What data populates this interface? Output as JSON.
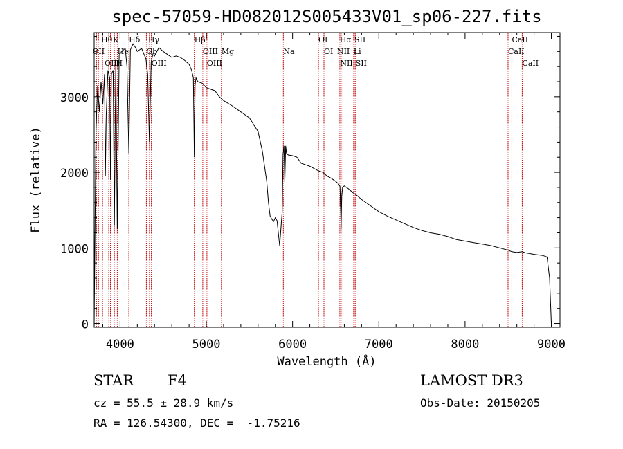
{
  "chart_data": {
    "type": "line",
    "title": "spec-57059-HD082012S005433V01_sp06-227.fits",
    "xlabel": "Wavelength (Å)",
    "ylabel": "Flux (relative)",
    "xlim": [
      3700,
      9100
    ],
    "ylim": [
      -50,
      3850
    ],
    "xticks": [
      4000,
      5000,
      6000,
      7000,
      8000,
      9000
    ],
    "yticks": [
      0,
      1000,
      2000,
      3000
    ],
    "series": [
      {
        "name": "spectrum",
        "x": [
          3700,
          3720,
          3740,
          3760,
          3780,
          3800,
          3820,
          3830,
          3840,
          3860,
          3880,
          3890,
          3900,
          3920,
          3934,
          3950,
          3968,
          3990,
          4020,
          4060,
          4080,
          4102,
          4120,
          4150,
          4180,
          4200,
          4250,
          4300,
          4320,
          4340,
          4360,
          4380,
          4400,
          4450,
          4500,
          4550,
          4600,
          4650,
          4700,
          4750,
          4800,
          4830,
          4850,
          4861,
          4870,
          4880,
          4900,
          4950,
          5000,
          5050,
          5100,
          5150,
          5200,
          5300,
          5400,
          5500,
          5600,
          5650,
          5700,
          5720,
          5740,
          5760,
          5780,
          5800,
          5820,
          5850,
          5870,
          5880,
          5890,
          5900,
          5910,
          5920,
          5930,
          5950,
          6000,
          6050,
          6100,
          6200,
          6300,
          6350,
          6400,
          6450,
          6500,
          6530,
          6550,
          6563,
          6570,
          6580,
          6600,
          6650,
          6700,
          6750,
          6800,
          6900,
          7000,
          7100,
          7200,
          7300,
          7400,
          7500,
          7600,
          7700,
          7800,
          7900,
          8000,
          8100,
          8200,
          8300,
          8400,
          8498,
          8542,
          8600,
          8662,
          8700,
          8800,
          8900,
          8950,
          8980,
          9000
        ],
        "values": [
          0,
          2500,
          3150,
          2800,
          3200,
          2900,
          3300,
          1950,
          2750,
          3350,
          3250,
          1900,
          3300,
          3350,
          1300,
          3500,
          1250,
          3550,
          3600,
          3640,
          3400,
          2250,
          3620,
          3700,
          3650,
          3600,
          3640,
          3500,
          3300,
          2400,
          3450,
          3560,
          3540,
          3650,
          3600,
          3560,
          3520,
          3540,
          3520,
          3480,
          3430,
          3350,
          3250,
          2200,
          3150,
          3250,
          3200,
          3180,
          3120,
          3100,
          3080,
          3000,
          2950,
          2880,
          2800,
          2720,
          2540,
          2280,
          1880,
          1600,
          1420,
          1380,
          1350,
          1400,
          1360,
          1030,
          1330,
          1480,
          2240,
          2350,
          1870,
          2350,
          2250,
          2230,
          2220,
          2200,
          2120,
          2080,
          2020,
          2000,
          1950,
          1920,
          1880,
          1850,
          1810,
          1250,
          1680,
          1800,
          1820,
          1780,
          1730,
          1690,
          1640,
          1560,
          1480,
          1420,
          1370,
          1320,
          1270,
          1230,
          1200,
          1180,
          1150,
          1110,
          1090,
          1070,
          1050,
          1030,
          1000,
          970,
          950,
          940,
          950,
          935,
          915,
          900,
          880,
          600,
          0
        ]
      }
    ],
    "line_labels": [
      {
        "name": "Hθ",
        "wavelength": 3797
      },
      {
        "name": "OII",
        "wavelength": 3727
      },
      {
        "name": "OIII",
        "wavelength": 3869
      },
      {
        "name": "K",
        "wavelength": 3934
      },
      {
        "name": "He",
        "wavelength": 3970
      },
      {
        "name": "H",
        "wavelength": 3968
      },
      {
        "name": "Hδ",
        "wavelength": 4102
      },
      {
        "name": "Gb",
        "wavelength": 4305
      },
      {
        "name": "OIII",
        "wavelength": 4363
      },
      {
        "name": "Hγ",
        "wavelength": 4341
      },
      {
        "name": "OIII",
        "wavelength": 4959
      },
      {
        "name": "OIII",
        "wavelength": 5007
      },
      {
        "name": "Hβ",
        "wavelength": 4861
      },
      {
        "name": "Mg",
        "wavelength": 5175
      },
      {
        "name": "Na",
        "wavelength": 5893
      },
      {
        "name": "OI",
        "wavelength": 6300
      },
      {
        "name": "OI",
        "wavelength": 6364
      },
      {
        "name": "Hα",
        "wavelength": 6563
      },
      {
        "name": "SII",
        "wavelength": 6717
      },
      {
        "name": "NII",
        "wavelength": 6548
      },
      {
        "name": "Li",
        "wavelength": 6708
      },
      {
        "name": "NII",
        "wavelength": 6584
      },
      {
        "name": "SII",
        "wavelength": 6731
      },
      {
        "name": "CaII",
        "wavelength": 8542
      },
      {
        "name": "CaII",
        "wavelength": 8498
      },
      {
        "name": "CaII",
        "wavelength": 8662
      }
    ],
    "marker_lines": [
      3727,
      3750,
      3797,
      3869,
      3889,
      3934,
      3968,
      4102,
      4305,
      4341,
      4363,
      4861,
      4959,
      5007,
      5175,
      5893,
      6300,
      6364,
      6548,
      6563,
      6584,
      6708,
      6717,
      6731,
      8498,
      8542,
      8662
    ]
  },
  "info": {
    "class_label": "STAR",
    "subclass": "F4",
    "survey": "LAMOST DR3",
    "cz_text": "cz = 55.5 ± 28.9 km/s",
    "obs_date": "Obs-Date: 20150205",
    "coords": "RA = 126.54300, DEC =  -1.75216"
  },
  "colors": {
    "spectrum": "#000000",
    "markers": "#c00000",
    "axes": "#000000"
  }
}
